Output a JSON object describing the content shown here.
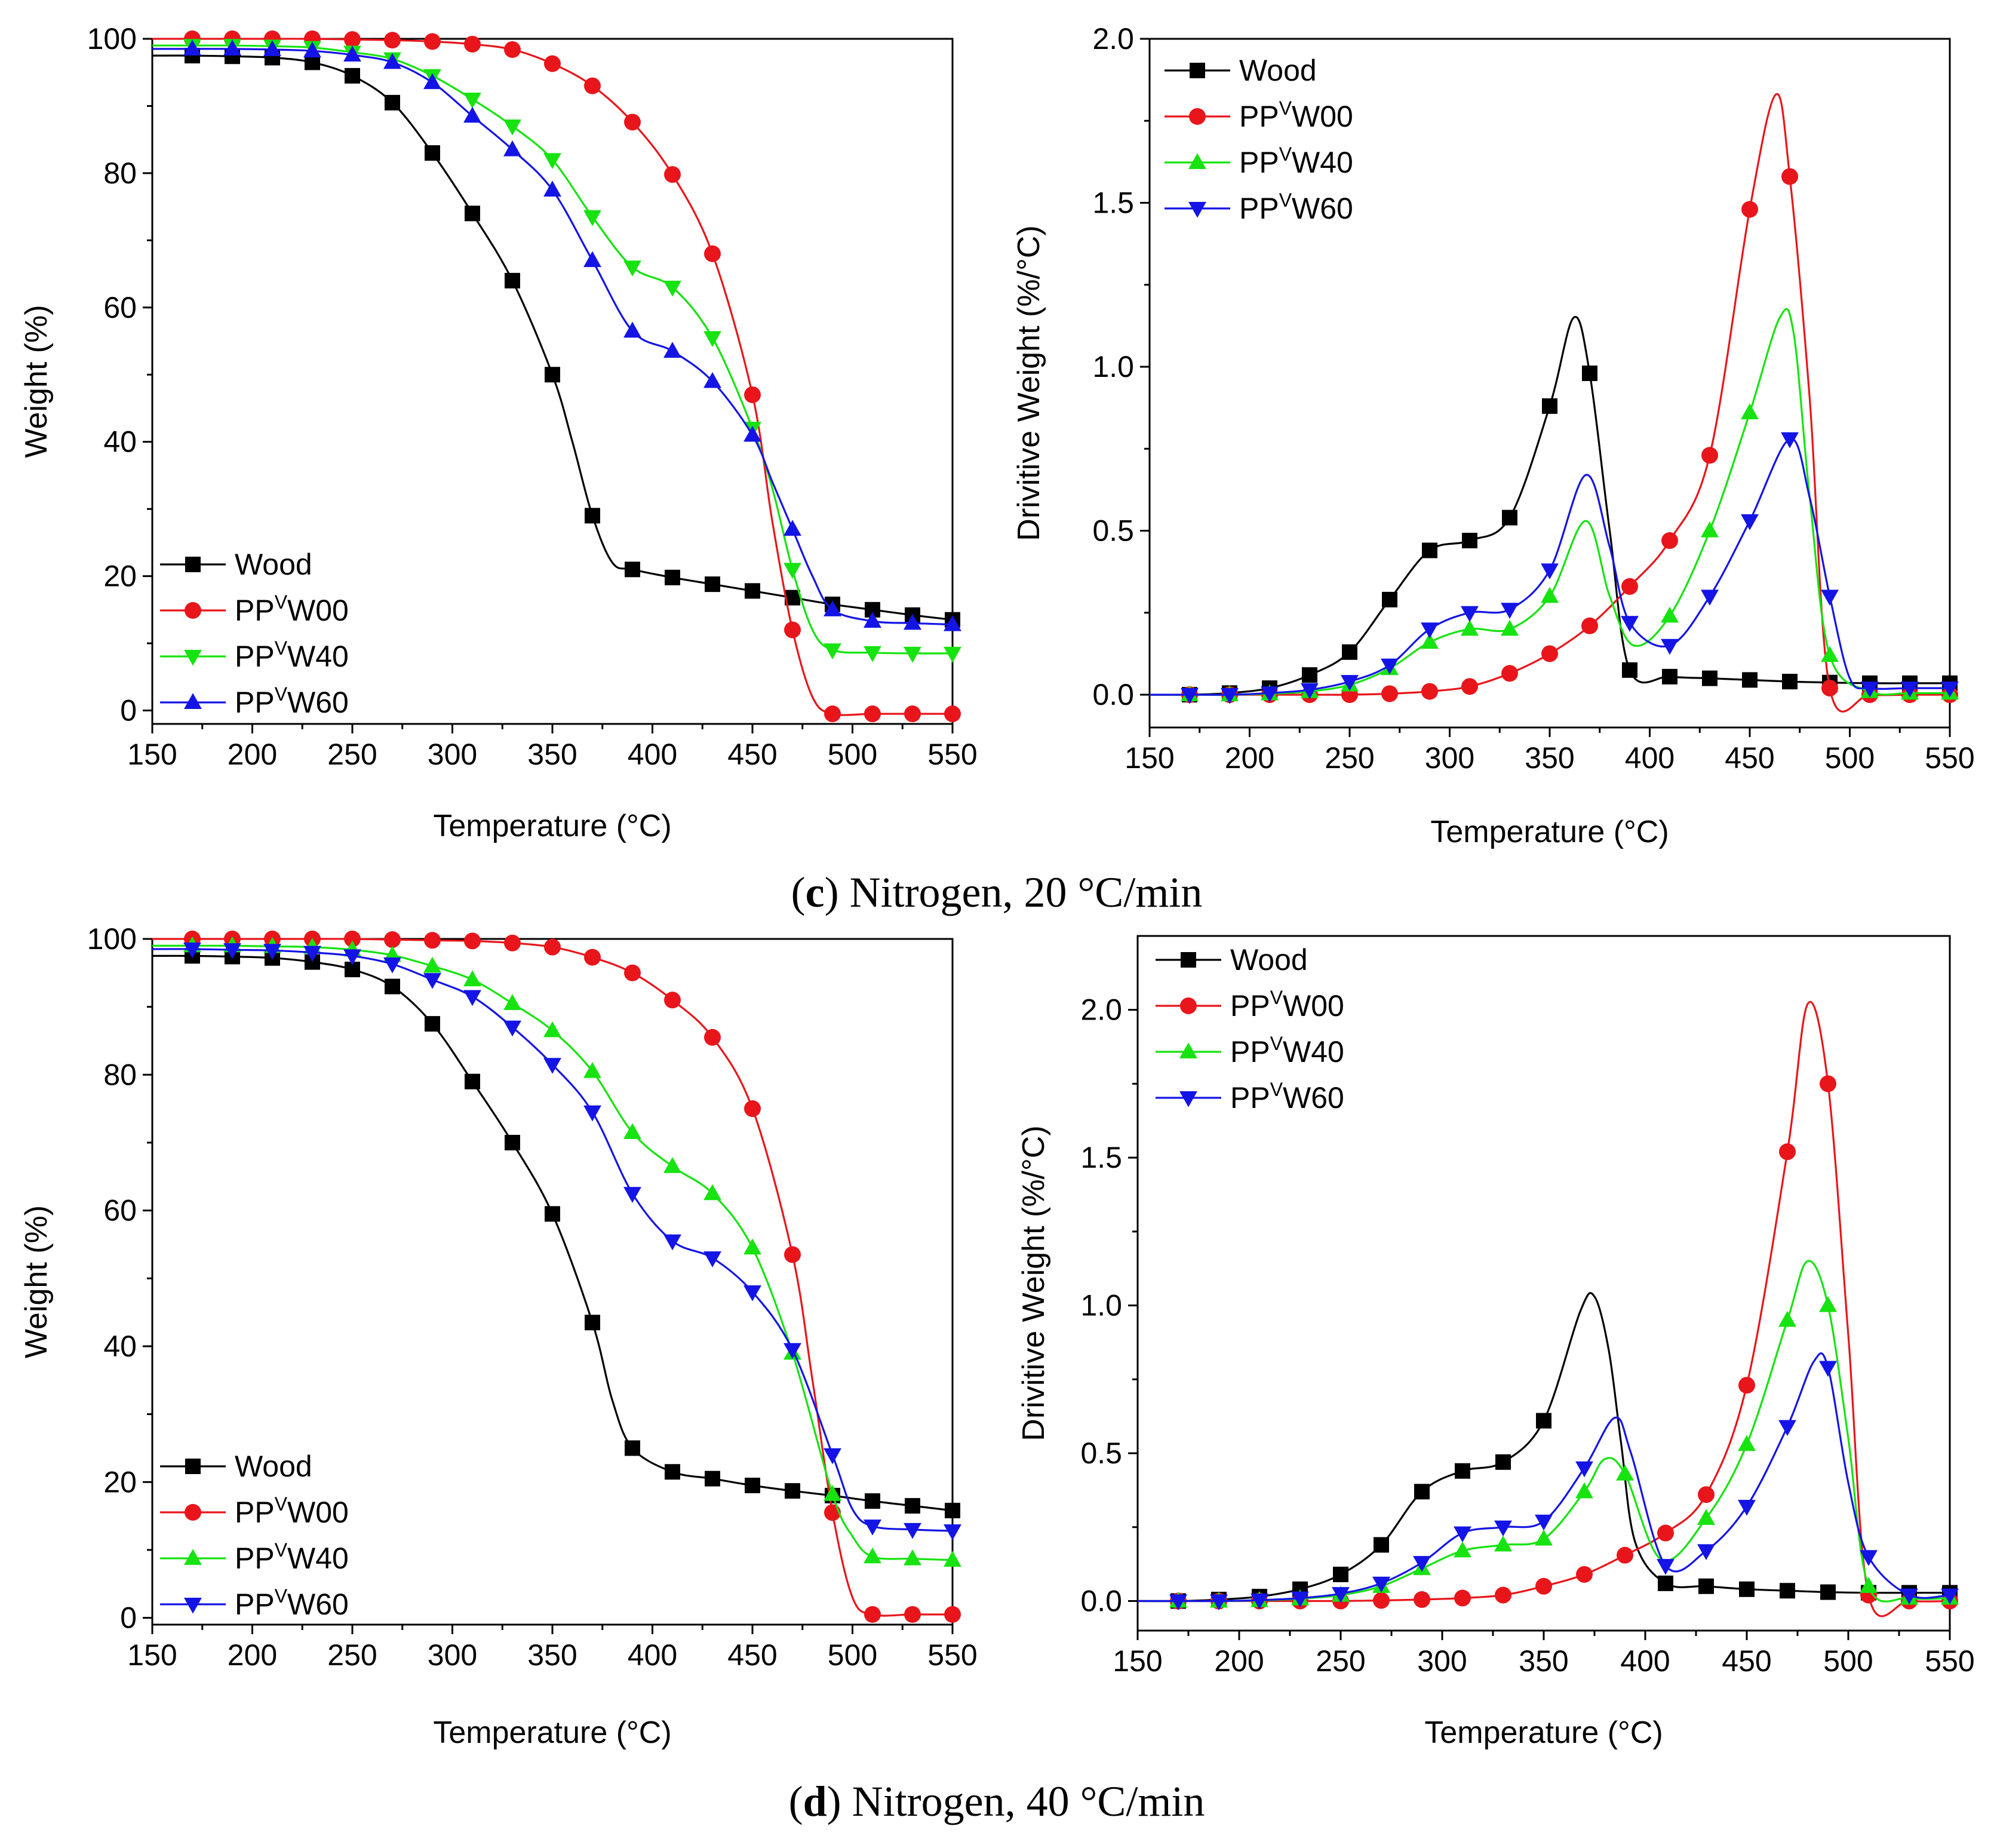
{
  "captions": [
    {
      "letter": "c",
      "text": "Nitrogen, 20 °C/min"
    },
    {
      "letter": "d",
      "text": "Nitrogen, 40 °C/min"
    }
  ],
  "colors": {
    "Wood": "#000000",
    "PPVW00": "#e8151b",
    "PPVW40": "#16e30f",
    "PPVW60": "#1414e6"
  },
  "chart_data": [
    {
      "id": "c-tga",
      "type": "line",
      "xlabel": "Temperature (°C)",
      "ylabel": "Weight (%)",
      "xlim": [
        150,
        550
      ],
      "ylim": [
        -2,
        100
      ],
      "xticks": [
        150,
        200,
        250,
        300,
        350,
        400,
        450,
        500,
        550
      ],
      "yticks": [
        0,
        20,
        40,
        60,
        80,
        100
      ],
      "legend_position": "bottom-left",
      "series": [
        {
          "name": "Wood",
          "key": "Wood",
          "marker": "square",
          "x": [
            150,
            170,
            190,
            210,
            230,
            250,
            270,
            290,
            310,
            330,
            350,
            360,
            370,
            380,
            390,
            410,
            430,
            450,
            470,
            490,
            510,
            530,
            550
          ],
          "y": [
            97.5,
            97.5,
            97.4,
            97.2,
            96.5,
            94.5,
            90.5,
            83,
            74,
            64,
            50,
            40,
            29,
            22,
            21,
            19.8,
            18.8,
            17.8,
            16.8,
            15.8,
            15,
            14.2,
            13.5
          ]
        },
        {
          "name": "PPVW00",
          "key": "PPVW00",
          "marker": "circle",
          "x": [
            150,
            170,
            190,
            210,
            230,
            250,
            270,
            290,
            310,
            330,
            350,
            370,
            390,
            410,
            430,
            450,
            460,
            470,
            480,
            490,
            510,
            530,
            550
          ],
          "y": [
            100,
            100,
            100,
            100,
            100,
            99.9,
            99.8,
            99.6,
            99.2,
            98.4,
            96.3,
            93,
            87.6,
            79.8,
            68,
            47,
            28,
            12,
            2,
            -0.5,
            -0.5,
            -0.5,
            -0.5
          ]
        },
        {
          "name": "PPVW40",
          "key": "PPVW40",
          "marker": "triangle-down",
          "x": [
            150,
            170,
            190,
            210,
            230,
            250,
            270,
            290,
            310,
            330,
            350,
            370,
            390,
            410,
            430,
            450,
            460,
            470,
            480,
            490,
            510,
            530,
            550
          ],
          "y": [
            99,
            99,
            99,
            98.9,
            98.7,
            98,
            97,
            94.5,
            91,
            87,
            82,
            73.5,
            66,
            63,
            55.5,
            42,
            33,
            21,
            12,
            9,
            8.6,
            8.5,
            8.5
          ]
        },
        {
          "name": "PPVW60",
          "key": "PPVW60",
          "marker": "triangle-up",
          "x": [
            150,
            170,
            190,
            210,
            230,
            250,
            270,
            290,
            310,
            330,
            350,
            370,
            390,
            410,
            430,
            450,
            460,
            470,
            480,
            490,
            510,
            530,
            550
          ],
          "y": [
            98.5,
            98.5,
            98.5,
            98.4,
            98.2,
            97.6,
            96.5,
            93.5,
            88.5,
            83.5,
            77.5,
            67,
            56.5,
            53.5,
            49,
            41,
            34,
            27,
            20,
            15,
            13.3,
            13,
            12.8
          ]
        }
      ]
    },
    {
      "id": "c-dtg",
      "type": "line",
      "xlabel": "Temperature (°C)",
      "ylabel": "Drivitive Weight (%/°C)",
      "xlim": [
        150,
        550
      ],
      "ylim": [
        -0.1,
        2.0
      ],
      "xticks": [
        150,
        200,
        250,
        300,
        350,
        400,
        450,
        500,
        550
      ],
      "yticks": [
        0.0,
        0.5,
        1.0,
        1.5,
        2.0
      ],
      "legend_position": "top-left",
      "series": [
        {
          "name": "Wood",
          "key": "Wood",
          "marker": "square",
          "x": [
            150,
            170,
            190,
            210,
            230,
            250,
            270,
            290,
            310,
            330,
            350,
            362,
            370,
            380,
            390,
            410,
            430,
            450,
            470,
            490,
            510,
            530,
            550
          ],
          "y": [
            0,
            0,
            0.005,
            0.02,
            0.06,
            0.13,
            0.29,
            0.44,
            0.47,
            0.54,
            0.88,
            1.15,
            0.98,
            0.5,
            0.075,
            0.055,
            0.05,
            0.045,
            0.04,
            0.037,
            0.035,
            0.035,
            0.035
          ]
        },
        {
          "name": "PPVW00",
          "key": "PPVW00",
          "marker": "circle",
          "x": [
            150,
            170,
            190,
            210,
            230,
            250,
            270,
            290,
            310,
            330,
            350,
            370,
            390,
            410,
            430,
            450,
            463,
            470,
            480,
            490,
            510,
            530,
            550
          ],
          "y": [
            0,
            0,
            0,
            0,
            0,
            0,
            0.003,
            0.01,
            0.025,
            0.065,
            0.125,
            0.21,
            0.33,
            0.47,
            0.73,
            1.48,
            1.83,
            1.58,
            0.9,
            0.02,
            0,
            0,
            0
          ]
        },
        {
          "name": "PPVW40",
          "key": "PPVW40",
          "marker": "triangle-up",
          "x": [
            150,
            170,
            190,
            210,
            230,
            250,
            270,
            290,
            310,
            330,
            350,
            368,
            380,
            392,
            410,
            430,
            450,
            465,
            472,
            480,
            490,
            510,
            530,
            550
          ],
          "y": [
            0,
            0,
            0,
            0.003,
            0.01,
            0.03,
            0.08,
            0.16,
            0.2,
            0.2,
            0.3,
            0.53,
            0.3,
            0.15,
            0.24,
            0.5,
            0.86,
            1.15,
            1.1,
            0.6,
            0.12,
            0.01,
            0.005,
            0.005
          ]
        },
        {
          "name": "PPVW60",
          "key": "PPVW60",
          "marker": "triangle-down",
          "x": [
            150,
            170,
            190,
            210,
            230,
            250,
            270,
            290,
            310,
            330,
            350,
            368,
            380,
            390,
            410,
            430,
            450,
            470,
            480,
            490,
            500,
            510,
            530,
            550
          ],
          "y": [
            0,
            0,
            0,
            0.005,
            0.015,
            0.04,
            0.09,
            0.2,
            0.25,
            0.26,
            0.38,
            0.67,
            0.45,
            0.22,
            0.15,
            0.3,
            0.53,
            0.78,
            0.6,
            0.3,
            0.05,
            0.02,
            0.02,
            0.02
          ]
        }
      ]
    },
    {
      "id": "d-tga",
      "type": "line",
      "xlabel": "Temperature (°C)",
      "ylabel": "Weight (%)",
      "xlim": [
        150,
        550
      ],
      "ylim": [
        -1,
        100
      ],
      "xticks": [
        150,
        200,
        250,
        300,
        350,
        400,
        450,
        500,
        550
      ],
      "yticks": [
        0,
        20,
        40,
        60,
        80,
        100
      ],
      "legend_position": "bottom-left",
      "series": [
        {
          "name": "Wood",
          "key": "Wood",
          "marker": "square",
          "x": [
            150,
            170,
            190,
            210,
            230,
            250,
            270,
            290,
            310,
            330,
            350,
            370,
            380,
            390,
            410,
            430,
            450,
            470,
            490,
            510,
            530,
            550
          ],
          "y": [
            97.5,
            97.5,
            97.4,
            97.2,
            96.6,
            95.5,
            93,
            87.5,
            79,
            70,
            59.5,
            43.5,
            32,
            25,
            21.5,
            20.5,
            19.5,
            18.7,
            18,
            17.2,
            16.5,
            15.8
          ]
        },
        {
          "name": "PPVW00",
          "key": "PPVW00",
          "marker": "circle",
          "x": [
            150,
            170,
            190,
            210,
            230,
            250,
            270,
            290,
            310,
            330,
            350,
            370,
            390,
            410,
            430,
            450,
            470,
            480,
            490,
            500,
            510,
            530,
            550
          ],
          "y": [
            100,
            100,
            100,
            100,
            100,
            100,
            99.9,
            99.8,
            99.7,
            99.4,
            98.8,
            97.3,
            95,
            91,
            85.5,
            75,
            53.5,
            35,
            15.5,
            3,
            0.5,
            0.5,
            0.5
          ]
        },
        {
          "name": "PPVW40",
          "key": "PPVW40",
          "marker": "triangle-up",
          "x": [
            150,
            170,
            190,
            210,
            230,
            250,
            270,
            290,
            310,
            330,
            350,
            370,
            390,
            410,
            430,
            450,
            470,
            490,
            500,
            510,
            530,
            550
          ],
          "y": [
            99,
            99,
            99,
            98.9,
            98.8,
            98.4,
            97.6,
            96,
            94,
            90.5,
            86.5,
            80.5,
            71.5,
            66.5,
            62.5,
            54.5,
            39,
            18.2,
            12,
            9,
            8.7,
            8.5
          ]
        },
        {
          "name": "PPVW60",
          "key": "PPVW60",
          "marker": "triangle-down",
          "x": [
            150,
            170,
            190,
            210,
            230,
            250,
            270,
            290,
            310,
            330,
            350,
            370,
            390,
            410,
            430,
            450,
            470,
            490,
            500,
            510,
            530,
            550
          ],
          "y": [
            98.5,
            98.5,
            98.4,
            98.3,
            98,
            97.5,
            96.3,
            94,
            91.5,
            87,
            81.5,
            74.5,
            62.5,
            55.5,
            53,
            48,
            39.5,
            24,
            16,
            13.5,
            13,
            12.8
          ]
        }
      ]
    },
    {
      "id": "d-dtg",
      "type": "line",
      "xlabel": "Temperature (°C)",
      "ylabel": "Drivitive Weight (%/°C)",
      "xlim": [
        150,
        550
      ],
      "ylim": [
        -0.1,
        2.25
      ],
      "xticks": [
        150,
        200,
        250,
        300,
        350,
        400,
        450,
        500,
        550
      ],
      "yticks": [
        0.0,
        0.5,
        1.0,
        1.5,
        2.0
      ],
      "legend_position": "top-left",
      "series": [
        {
          "name": "Wood",
          "key": "Wood",
          "marker": "square",
          "x": [
            150,
            170,
            190,
            210,
            230,
            250,
            270,
            290,
            310,
            330,
            350,
            368,
            375,
            382,
            388,
            395,
            410,
            430,
            450,
            470,
            490,
            510,
            530,
            550
          ],
          "y": [
            0,
            0,
            0.005,
            0.015,
            0.04,
            0.09,
            0.19,
            0.37,
            0.44,
            0.47,
            0.61,
            0.98,
            1.03,
            0.85,
            0.54,
            0.2,
            0.06,
            0.05,
            0.04,
            0.035,
            0.03,
            0.028,
            0.028,
            0.028
          ]
        },
        {
          "name": "PPVW00",
          "key": "PPVW00",
          "marker": "circle",
          "x": [
            150,
            170,
            190,
            210,
            230,
            250,
            270,
            290,
            310,
            330,
            350,
            370,
            390,
            410,
            430,
            450,
            470,
            480,
            490,
            500,
            510,
            530,
            550
          ],
          "y": [
            0,
            0,
            0,
            0,
            0,
            0,
            0.002,
            0.005,
            0.01,
            0.02,
            0.05,
            0.09,
            0.155,
            0.23,
            0.36,
            0.73,
            1.52,
            2.02,
            1.75,
            0.9,
            0.02,
            0,
            0
          ]
        },
        {
          "name": "PPVW40",
          "key": "PPVW40",
          "marker": "triangle-up",
          "x": [
            150,
            170,
            190,
            210,
            230,
            250,
            270,
            290,
            310,
            330,
            350,
            370,
            380,
            390,
            408,
            430,
            450,
            470,
            480,
            490,
            500,
            510,
            530,
            550
          ],
          "y": [
            0,
            0,
            0,
            0.002,
            0.008,
            0.02,
            0.05,
            0.11,
            0.17,
            0.19,
            0.21,
            0.37,
            0.48,
            0.43,
            0.14,
            0.28,
            0.53,
            0.95,
            1.15,
            1.0,
            0.55,
            0.05,
            0.01,
            0.01
          ]
        },
        {
          "name": "PPVW60",
          "key": "PPVW60",
          "marker": "triangle-down",
          "x": [
            150,
            170,
            190,
            210,
            230,
            250,
            270,
            290,
            310,
            330,
            350,
            370,
            385,
            393,
            410,
            430,
            450,
            470,
            483,
            490,
            500,
            510,
            530,
            550
          ],
          "y": [
            0,
            0,
            0,
            0.003,
            0.01,
            0.025,
            0.06,
            0.13,
            0.23,
            0.25,
            0.27,
            0.45,
            0.62,
            0.5,
            0.12,
            0.17,
            0.32,
            0.59,
            0.81,
            0.79,
            0.4,
            0.15,
            0.02,
            0.02
          ]
        }
      ]
    }
  ]
}
